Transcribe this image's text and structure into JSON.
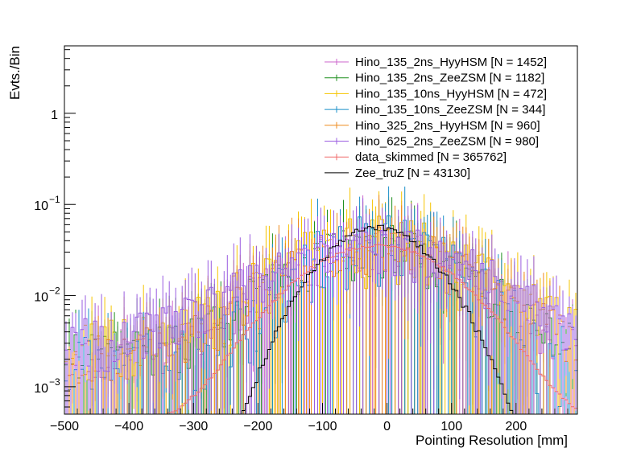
{
  "chart_data": {
    "type": "histogram",
    "title": "",
    "xlabel": "Pointing Resolution [mm]",
    "ylabel": "Evts./Bin",
    "xlim": [
      -500,
      295
    ],
    "ylim": [
      0.0005,
      5.5
    ],
    "yscale": "log",
    "x_ticks": [
      -500,
      -400,
      -300,
      -200,
      -100,
      0,
      100,
      200
    ],
    "x_tick_labels": [
      "−500",
      "−400",
      "−300",
      "−200",
      "−100",
      "0",
      "100",
      "200"
    ],
    "y_major_ticks": [
      {
        "value": 0.001,
        "base": "10",
        "exp": "−3"
      },
      {
        "value": 0.01,
        "base": "10",
        "exp": "−2"
      },
      {
        "value": 0.1,
        "base": "10",
        "exp": "−1"
      },
      {
        "value": 1,
        "base": "1",
        "exp": ""
      }
    ],
    "bin_width": 5,
    "legend_position": "top-right",
    "series": [
      {
        "name": "Hino_135_2ns_HyyHSM [N = 1452]",
        "color": "#cc66cc",
        "peak": 0.035,
        "sigma": 110,
        "floor": 0.0025,
        "noise": 0.55,
        "errbars": true,
        "seed": 11,
        "zero_frac": 0.1
      },
      {
        "name": "Hino_135_2ns_ZeeZSM [N = 1182]",
        "color": "#1f8f1f",
        "peak": 0.035,
        "sigma": 110,
        "floor": 0.0025,
        "noise": 0.6,
        "errbars": true,
        "seed": 23,
        "zero_frac": 0.12
      },
      {
        "name": "Hino_135_10ns_HyyHSM [N = 472]",
        "color": "#f5c400",
        "peak": 0.04,
        "sigma": 120,
        "floor": 0.003,
        "noise": 0.75,
        "errbars": true,
        "seed": 37,
        "zero_frac": 0.2
      },
      {
        "name": "Hino_135_10ns_ZeeZSM [N = 344]",
        "color": "#1a8fc9",
        "peak": 0.04,
        "sigma": 100,
        "floor": 0.002,
        "noise": 0.85,
        "errbars": true,
        "seed": 41,
        "zero_frac": 0.3
      },
      {
        "name": "Hino_325_2ns_HyyHSM [N = 960]",
        "color": "#ee8a1c",
        "peak": 0.035,
        "sigma": 115,
        "floor": 0.0025,
        "noise": 0.6,
        "errbars": true,
        "seed": 53,
        "zero_frac": 0.12
      },
      {
        "name": "Hino_625_2ns_ZeeZSM [N = 980]",
        "color": "#9a5ce0",
        "peak": 0.033,
        "sigma": 130,
        "floor": 0.0035,
        "noise": 0.6,
        "errbars": true,
        "seed": 67,
        "zero_frac": 0.08
      },
      {
        "name": "data_skimmed [N = 365762]",
        "color": "#f06a6a",
        "peak": 0.035,
        "sigma": 95,
        "floor": 0.0004,
        "noise": 0.04,
        "errbars": false,
        "seed": 71,
        "zero_frac": 0
      },
      {
        "name": "Zee_truZ [N = 43130]",
        "color": "#000000",
        "peak": 0.055,
        "sigma": 68,
        "floor": 0.0,
        "noise": 0.1,
        "errbars": false,
        "seed": 83,
        "zero_frac": 0
      }
    ]
  }
}
